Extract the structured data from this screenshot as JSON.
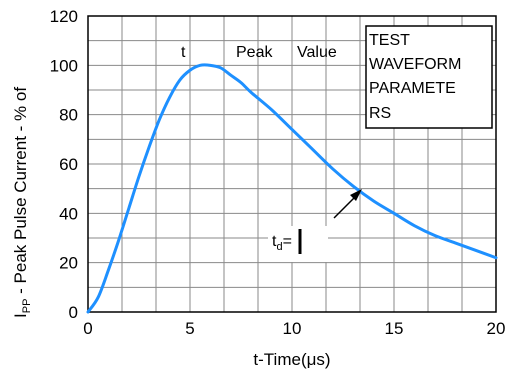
{
  "chart_data": {
    "type": "line",
    "xlabel": "t-Time(μs)",
    "ylabel": "IPP - Peak Pulse Current - % of",
    "ylabel_prefix_main": "I",
    "ylabel_prefix_sub": "PP",
    "ylabel_rest": " - Peak Pulse Current - % of",
    "xlim": [
      0,
      20
    ],
    "ylim": [
      0,
      120
    ],
    "x_ticks": [
      0,
      5,
      10,
      15,
      20
    ],
    "y_ticks": [
      0,
      20,
      40,
      60,
      80,
      100,
      120
    ],
    "x_tick_labels": [
      "0",
      "5",
      "10",
      "15",
      "20"
    ],
    "y_tick_labels": [
      "0",
      "20",
      "40",
      "60",
      "80",
      "100",
      "120"
    ],
    "grid": true,
    "line_color": "#1e90ff",
    "series": [
      {
        "x": [
          0,
          0.5,
          1,
          1.5,
          2,
          2.5,
          3,
          3.5,
          4,
          4.5,
          5,
          5.5,
          6,
          6.5,
          7,
          7.5,
          8,
          9,
          10,
          11,
          12,
          13,
          14,
          15,
          16,
          17,
          18,
          19,
          20
        ],
        "y": [
          0,
          6,
          17,
          29,
          42,
          55,
          67,
          78,
          87,
          94,
          98,
          100,
          100,
          99,
          96,
          93,
          89,
          82,
          74,
          66,
          58,
          51,
          45,
          40,
          35,
          31,
          28,
          25,
          22
        ]
      }
    ],
    "annotations": {
      "peak_label_1": "t",
      "peak_label_2": "Peak",
      "peak_label_3": "Value",
      "td_main": "t",
      "td_sub": "d",
      "td_eq": "=",
      "box_lines": [
        "TEST",
        "WAVEFORM",
        "PARAMETE",
        "RS"
      ]
    }
  }
}
